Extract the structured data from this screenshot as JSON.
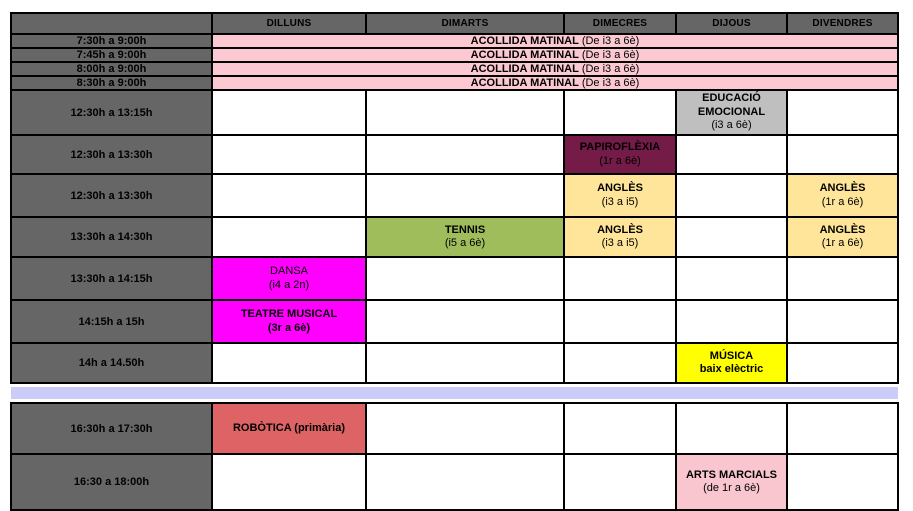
{
  "timetable": {
    "columns": [
      "",
      "DILLUNS",
      "DIMARTS",
      "DIMECRES",
      "DIJOUS",
      "DIVENDRES"
    ],
    "colors": {
      "header_gray": "#666666",
      "border_black": "#000000",
      "acollida_pink": "#fcc9d2",
      "emocional_gray": "#bfbfbf",
      "papiroflexia_maroon": "#741b47",
      "angles_yellow": "#ffe599",
      "tennis_green": "#a0bd5c",
      "magenta": "#ff00fe",
      "musica_yellow": "#ffff00",
      "robotica_red": "#de6364",
      "arts_pink": "#f9c6d0",
      "separator_lavender": "#ccccfb"
    },
    "rows": [
      {
        "kind": "acollida",
        "time": "7:30h a 9:00h",
        "activity": {
          "title": "ACOLLIDA MATINAL",
          "subtitle": "(De i3 a 6è)",
          "color": "acollida_pink"
        }
      },
      {
        "kind": "acollida",
        "time": "7:45h a 9:00h",
        "activity": {
          "title": "ACOLLIDA MATINAL",
          "subtitle": "(De i3 a 6è)",
          "color": "acollida_pink"
        }
      },
      {
        "kind": "acollida",
        "time": "8:00h a 9:00h",
        "activity": {
          "title": "ACOLLIDA MATINAL",
          "subtitle": "(De i3 a 6è)",
          "color": "acollida_pink"
        }
      },
      {
        "kind": "acollida",
        "time": "8:30h a 9:00h",
        "activity": {
          "title": "ACOLLIDA MATINAL",
          "subtitle": "(De i3 a 6è)",
          "color": "acollida_pink"
        }
      },
      {
        "kind": "cells",
        "time": "12:30h a 13:15h",
        "cells": [
          null,
          null,
          null,
          {
            "title": "EDUCACIÓ EMOCIONAL",
            "subtitle": "(i3 a 6è)",
            "color": "emocional_gray"
          },
          null
        ]
      },
      {
        "kind": "cells",
        "time": "12:30h a 13:30h",
        "cells": [
          null,
          null,
          {
            "title": "PAPIROFLÈXIA",
            "subtitle": "(1r a 6è)",
            "color": "papiroflexia_maroon"
          },
          null,
          null
        ]
      },
      {
        "kind": "cells",
        "time": "12:30h a 13:30h",
        "cells": [
          null,
          null,
          {
            "title": "ANGLÈS",
            "subtitle": "(i3 a i5)",
            "color": "angles_yellow"
          },
          null,
          {
            "title": "ANGLÈS",
            "subtitle": "(1r a 6è)",
            "color": "angles_yellow"
          }
        ]
      },
      {
        "kind": "cells",
        "time": "13:30h a 14:30h",
        "cells": [
          null,
          {
            "title": "TENNIS",
            "subtitle": "(i5 a 6è)",
            "color": "tennis_green"
          },
          {
            "title": "ANGLÈS",
            "subtitle": "(i3 a i5)",
            "color": "angles_yellow"
          },
          null,
          {
            "title": "ANGLÈS",
            "subtitle": "(1r a 6è)",
            "color": "angles_yellow"
          }
        ]
      },
      {
        "kind": "cells",
        "time": "13:30h a 14:15h",
        "cells": [
          {
            "title": "DANSA",
            "subtitle": "(i4 a 2n)",
            "color": "magenta",
            "title_bold": false
          },
          null,
          null,
          null,
          null
        ]
      },
      {
        "kind": "cells",
        "time": "14:15h a 15h",
        "cells": [
          {
            "title": "TEATRE MUSICAL",
            "subtitle": "(3r a 6è)",
            "color": "magenta",
            "subtitle_bold": true
          },
          null,
          null,
          null,
          null
        ]
      },
      {
        "kind": "cells",
        "time": "14h a 14.50h",
        "cells": [
          null,
          null,
          null,
          {
            "title": "MÚSICA",
            "subtitle": "baix elèctric",
            "color": "musica_yellow",
            "subtitle_bold": true
          },
          null
        ]
      },
      {
        "kind": "separator"
      },
      {
        "kind": "cells",
        "time": "16:30h a 17:30h",
        "cells": [
          {
            "title": "ROBÒTICA (primària)",
            "subtitle": "",
            "color": "robotica_red"
          },
          null,
          null,
          null,
          null
        ]
      },
      {
        "kind": "cells",
        "time": "16:30 a 18:00h",
        "cells": [
          null,
          null,
          null,
          {
            "title": "ARTS MARCIALS",
            "subtitle": "(de 1r a 6è)",
            "color": "arts_pink"
          },
          null
        ]
      }
    ]
  }
}
